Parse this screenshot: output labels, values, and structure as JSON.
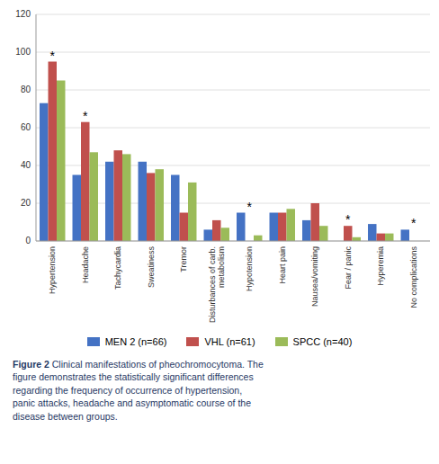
{
  "chart_data": {
    "type": "bar",
    "categories": [
      "Hypertension",
      "Headache",
      "Tachycardia",
      "Sweatiness",
      "Tremor",
      "Disturbances of carb.\nmetabolism",
      "Hypotension",
      "Heart pain",
      "Nausea/vomiting",
      "Fear / panic",
      "Hyperemia",
      "No complications"
    ],
    "series": [
      {
        "name": "MEN 2 (n=66)",
        "color": "#4472C4",
        "values": [
          73,
          35,
          42,
          42,
          35,
          6,
          15,
          15,
          11,
          0,
          9,
          6
        ]
      },
      {
        "name": "VHL (n=61)",
        "color": "#C0504D",
        "values": [
          95,
          63,
          48,
          36,
          15,
          11,
          0,
          15,
          20,
          8,
          4,
          0
        ]
      },
      {
        "name": "SPCC (n=40)",
        "color": "#9BBB59",
        "values": [
          85,
          47,
          46,
          38,
          31,
          7,
          3,
          17,
          8,
          2,
          4,
          0
        ]
      }
    ],
    "ylim": [
      0,
      120
    ],
    "yticks": [
      0,
      20,
      40,
      60,
      80,
      100,
      120
    ],
    "grid": true,
    "legend": "bottom",
    "annotations": [
      {
        "text": "*",
        "category": "Hypertension"
      },
      {
        "text": "*",
        "category": "Headache"
      },
      {
        "text": "*",
        "category": "Hypotension"
      },
      {
        "text": "*",
        "category": "Fear / panic"
      },
      {
        "text": "*",
        "category": "No complications"
      }
    ],
    "caption_label": "Figure 2",
    "caption": " Clinical manifestations of pheochromocytoma. The\nfigure demonstrates the statistically significant differences\nregarding the frequency of occurrence of hypertension,\npanic attacks, headache and asymptomatic course of the\ndisease between groups."
  }
}
